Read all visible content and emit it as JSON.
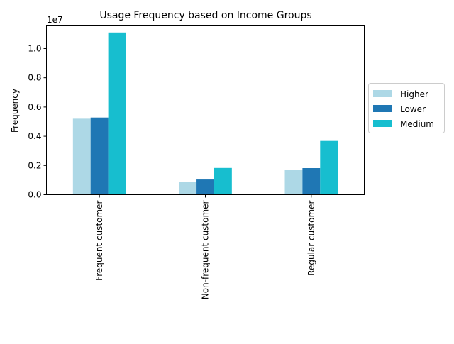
{
  "chart_data": {
    "type": "bar",
    "title": "Usage Frequency based on Income Groups",
    "xlabel": "",
    "ylabel": "Frequency",
    "y_scale_label": "1e7",
    "y_scale": 10000000,
    "ylim": [
      0,
      11600000
    ],
    "yticks": [
      0,
      2000000,
      4000000,
      6000000,
      8000000,
      10000000
    ],
    "ytick_labels": [
      "0.0",
      "0.2",
      "0.4",
      "0.6",
      "0.8",
      "1.0"
    ],
    "categories": [
      "Frequent customer",
      "Non-frequent customer",
      "Regular customer"
    ],
    "series": [
      {
        "name": "Higher",
        "color": "#add8e6",
        "values": [
          5200000,
          850000,
          1720000
        ]
      },
      {
        "name": "Lower",
        "color": "#1f77b4",
        "values": [
          5280000,
          1040000,
          1820000
        ]
      },
      {
        "name": "Medium",
        "color": "#17becf",
        "values": [
          11100000,
          1830000,
          3680000
        ]
      }
    ],
    "legend_position": "outside right",
    "grid": false
  }
}
